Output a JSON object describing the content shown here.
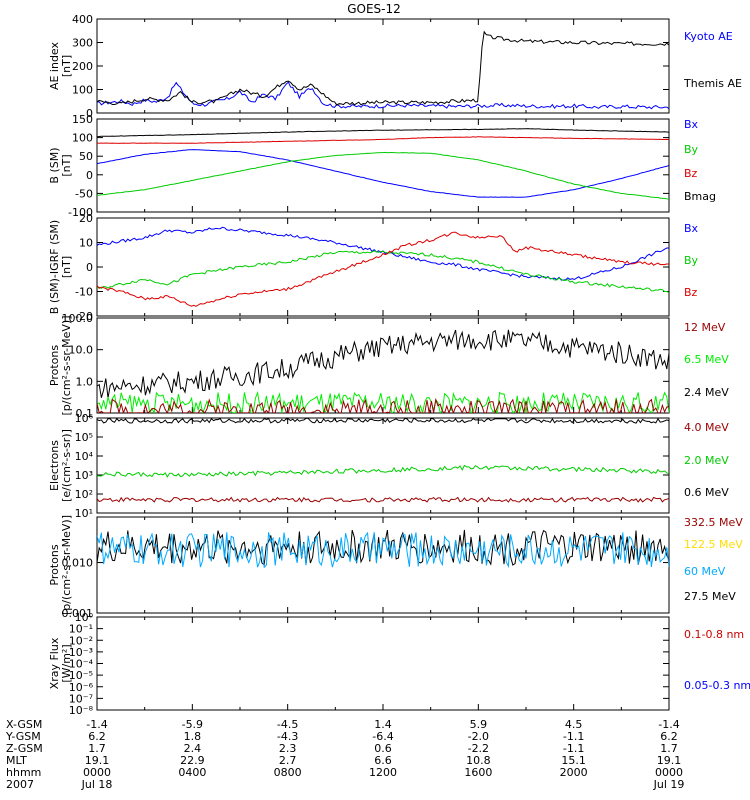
{
  "title": "GOES-12",
  "chart_data": [
    {
      "type": "line",
      "ylabel": "AE index\n[nT]",
      "yscale": "linear",
      "ylim": [
        0,
        400
      ],
      "yticks": [
        "400",
        "300",
        "200",
        "100",
        "0"
      ],
      "yticks_values": [
        400,
        300,
        200,
        100,
        0
      ],
      "legend": [
        {
          "name": "Kyoto AE",
          "color": "#0000ff"
        },
        {
          "name": "Themis AE",
          "color": "#000000"
        }
      ],
      "series": [
        {
          "name": "Kyoto AE",
          "color": "#0000ff",
          "x": [
            0,
            0.5,
            1,
            1.5,
            2,
            2.5,
            3,
            3.3,
            3.6,
            4,
            4.5,
            5,
            5.5,
            6,
            6.5,
            7,
            7.5,
            8,
            8.5,
            9,
            9.5,
            10,
            11,
            12,
            13,
            14,
            15,
            16,
            17,
            18,
            19,
            20,
            21,
            22,
            23,
            24
          ],
          "values": [
            40,
            45,
            50,
            38,
            55,
            48,
            70,
            130,
            90,
            40,
            35,
            50,
            60,
            90,
            45,
            80,
            60,
            130,
            70,
            110,
            40,
            30,
            28,
            30,
            32,
            30,
            28,
            30,
            33,
            30,
            28,
            30,
            25,
            28,
            25,
            25
          ]
        },
        {
          "name": "Themis AE",
          "color": "#000000",
          "x": [
            0,
            1,
            2,
            3,
            3.5,
            4,
            5,
            6,
            7,
            8,
            8.5,
            9,
            10,
            12,
            14,
            15,
            16,
            16.2,
            16.4,
            17,
            18,
            20,
            22,
            24
          ],
          "values": [
            50,
            40,
            60,
            55,
            90,
            45,
            50,
            100,
            70,
            145,
            100,
            120,
            40,
            45,
            45,
            50,
            55,
            345,
            325,
            315,
            305,
            300,
            295,
            295
          ]
        }
      ]
    },
    {
      "type": "line",
      "ylabel": "B (SM)\n[nT]",
      "yscale": "linear",
      "ylim": [
        -100,
        150
      ],
      "yticks": [
        "150",
        "100",
        "50",
        "0",
        "-50",
        "-100"
      ],
      "yticks_values": [
        150,
        100,
        50,
        0,
        -50,
        -100
      ],
      "legend": [
        {
          "name": "Bx",
          "color": "#0000ff"
        },
        {
          "name": "By",
          "color": "#00cc00"
        },
        {
          "name": "Bz",
          "color": "#dd0000"
        },
        {
          "name": "Bmag",
          "color": "#000000"
        }
      ],
      "series": [
        {
          "name": "Bx",
          "color": "#0000ff",
          "x": [
            0,
            2,
            4,
            6,
            8,
            10,
            12,
            14,
            16,
            18,
            20,
            22,
            24
          ],
          "values": [
            30,
            55,
            68,
            62,
            40,
            10,
            -20,
            -45,
            -60,
            -60,
            -40,
            -10,
            25
          ]
        },
        {
          "name": "By",
          "color": "#00cc00",
          "x": [
            0,
            2,
            4,
            6,
            8,
            10,
            12,
            14,
            16,
            18,
            20,
            22,
            24
          ],
          "values": [
            -55,
            -40,
            -15,
            10,
            35,
            52,
            60,
            58,
            40,
            10,
            -25,
            -50,
            -65
          ]
        },
        {
          "name": "Bz",
          "color": "#dd0000",
          "x": [
            0,
            4,
            8,
            12,
            14,
            16,
            18,
            20,
            24
          ],
          "values": [
            85,
            85,
            90,
            95,
            100,
            102,
            100,
            98,
            95
          ]
        },
        {
          "name": "Bmag",
          "color": "#000000",
          "x": [
            0,
            4,
            8,
            12,
            16,
            18,
            20,
            24
          ],
          "values": [
            103,
            108,
            115,
            120,
            122,
            124,
            120,
            115
          ]
        }
      ]
    },
    {
      "type": "line",
      "ylabel": "B (SM)-IGRF (SM)\n[nT]",
      "yscale": "linear",
      "ylim": [
        -20,
        20
      ],
      "yticks": [
        "20",
        "10",
        "0",
        "-10",
        "-20"
      ],
      "yticks_values": [
        20,
        10,
        0,
        -10,
        -20
      ],
      "legend": [
        {
          "name": "Bx",
          "color": "#0000ff"
        },
        {
          "name": "By",
          "color": "#00cc00"
        },
        {
          "name": "Bz",
          "color": "#dd0000"
        }
      ],
      "series": [
        {
          "name": "Bx",
          "color": "#0000ff",
          "x": [
            0,
            2,
            3,
            4,
            5,
            6,
            8,
            10,
            12,
            14,
            15,
            16,
            18,
            20,
            22,
            23,
            24
          ],
          "values": [
            9,
            12,
            15,
            14,
            16,
            15,
            13,
            10,
            6,
            2,
            1,
            -1,
            -4,
            -5,
            0,
            4,
            8
          ]
        },
        {
          "name": "By",
          "color": "#00cc00",
          "x": [
            0,
            2,
            3,
            4,
            6,
            8,
            10,
            12,
            14,
            16,
            18,
            20,
            22,
            24
          ],
          "values": [
            -9,
            -5,
            -7,
            -3,
            0,
            2,
            6,
            6,
            5,
            2,
            -3,
            -6,
            -8,
            -10
          ]
        },
        {
          "name": "Bz",
          "color": "#dd0000",
          "x": [
            0,
            1,
            2,
            3,
            4,
            6,
            8,
            10,
            12,
            13,
            14,
            15,
            16,
            17,
            17.5,
            18,
            20,
            22,
            24
          ],
          "values": [
            -8,
            -10,
            -13,
            -12,
            -16,
            -11,
            -9,
            -2,
            5,
            9,
            11,
            14,
            12,
            13,
            6,
            8,
            5,
            2,
            1
          ]
        }
      ]
    },
    {
      "type": "line",
      "ylabel": "Protons\n[p/(cm²-s-sr-MeV)]",
      "yscale": "log",
      "ylim": [
        0.1,
        100.0
      ],
      "yticks": [
        "100.0",
        "10.0",
        "1.0",
        "0.1"
      ],
      "yticks_values": [
        100,
        10,
        1,
        0.1
      ],
      "legend": [
        {
          "name": "12 MeV",
          "color": "#990000"
        },
        {
          "name": "6.5 MeV",
          "color": "#00ee00"
        },
        {
          "name": "2.4 MeV",
          "color": "#000000"
        }
      ],
      "series": [
        {
          "name": "2.4 MeV",
          "color": "#000000",
          "x": [
            0,
            2,
            4,
            6,
            8,
            10,
            12,
            14,
            15,
            16,
            18,
            20,
            22,
            24
          ],
          "values": [
            0.6,
            0.8,
            1.0,
            1.5,
            2.5,
            6,
            12,
            18,
            20,
            22,
            18,
            12,
            8,
            4
          ]
        },
        {
          "name": "6.5 MeV",
          "color": "#00ee00",
          "x": [
            0,
            12,
            24
          ],
          "values": [
            0.2,
            0.2,
            0.2
          ]
        },
        {
          "name": "12 MeV",
          "color": "#990000",
          "x": [
            0,
            12,
            24
          ],
          "values": [
            0.12,
            0.12,
            0.12
          ]
        }
      ]
    },
    {
      "type": "line",
      "ylabel": "Electrons\n[e/(cm²-s-sr)]",
      "yscale": "log",
      "ylim": [
        10,
        1000000
      ],
      "yticks": [
        "10⁶",
        "10⁵",
        "10⁴",
        "10³",
        "10²",
        "10¹"
      ],
      "yticks_values": [
        1000000,
        100000,
        10000,
        1000,
        100,
        10
      ],
      "legend": [
        {
          "name": "4.0 MeV",
          "color": "#990000"
        },
        {
          "name": "2.0 MeV",
          "color": "#00cc00"
        },
        {
          "name": "0.6 MeV",
          "color": "#000000"
        }
      ],
      "series": [
        {
          "name": "0.6 MeV",
          "color": "#000000",
          "x": [
            0,
            12,
            24
          ],
          "values": [
            700000,
            750000,
            700000
          ]
        },
        {
          "name": "2.0 MeV",
          "color": "#00cc00",
          "x": [
            0,
            4,
            8,
            12,
            16,
            20,
            24
          ],
          "values": [
            1100,
            1000,
            1300,
            1800,
            2500,
            2000,
            1500
          ]
        },
        {
          "name": "4.0 MeV",
          "color": "#990000",
          "x": [
            0,
            12,
            24
          ],
          "values": [
            50,
            50,
            50
          ]
        }
      ]
    },
    {
      "type": "line",
      "ylabel": "Protons\n[p/(cm²-s-sr-MeV)]",
      "yscale": "log",
      "ylim": [
        0.001,
        0.08
      ],
      "yticks": [
        "0.010",
        "0.001"
      ],
      "yticks_values": [
        0.01,
        0.001
      ],
      "legend": [
        {
          "name": "332.5 MeV",
          "color": "#990000"
        },
        {
          "name": "122.5 MeV",
          "color": "#ffdd00"
        },
        {
          "name": "60 MeV",
          "color": "#00aaff"
        },
        {
          "name": "27.5 MeV",
          "color": "#000000"
        }
      ],
      "series": [
        {
          "name": "27.5 MeV",
          "color": "#000000",
          "x": [
            0,
            12,
            24
          ],
          "values": [
            0.02,
            0.02,
            0.02
          ]
        },
        {
          "name": "60 MeV",
          "color": "#00aaff",
          "x": [
            0,
            12,
            24
          ],
          "values": [
            0.018,
            0.018,
            0.018
          ]
        }
      ]
    },
    {
      "type": "line",
      "ylabel": "Xray Flux\n[W/m²]",
      "yscale": "log",
      "ylim": [
        1e-08,
        1
      ],
      "yticks": [
        "10⁰",
        "10⁻¹",
        "10⁻²",
        "10⁻³",
        "10⁻⁴",
        "10⁻⁵",
        "10⁻⁶",
        "10⁻⁷",
        "10⁻⁸"
      ],
      "yticks_values": [
        1,
        0.1,
        0.01,
        0.001,
        0.0001,
        1e-05,
        1e-06,
        1e-07,
        1e-08
      ],
      "legend": [
        {
          "name": "0.1-0.8 nm",
          "color": "#cc0000"
        },
        {
          "name": "0.05-0.3 nm",
          "color": "#0000ff"
        }
      ],
      "series": []
    }
  ],
  "x_axis": {
    "range_hours": [
      0,
      24
    ],
    "row_labels": [
      "X-GSM",
      "Y-GSM",
      "Z-GSM",
      "MLT",
      "hhmm",
      "2007"
    ],
    "columns": [
      [
        "-1.4",
        "6.2",
        "1.7",
        "19.1",
        "0000",
        "Jul 18"
      ],
      [
        "-5.9",
        "1.8",
        "2.4",
        "22.9",
        "0400",
        ""
      ],
      [
        "-4.5",
        "-4.3",
        "2.3",
        "2.7",
        "0800",
        ""
      ],
      [
        "1.4",
        "-6.4",
        "0.6",
        "6.6",
        "1200",
        ""
      ],
      [
        "5.9",
        "-2.0",
        "-2.2",
        "10.8",
        "1600",
        ""
      ],
      [
        "4.5",
        "-1.1",
        "-1.1",
        "15.1",
        "2000",
        ""
      ],
      [
        "-1.4",
        "6.2",
        "1.7",
        "19.1",
        "0000",
        "Jul 19"
      ]
    ]
  }
}
